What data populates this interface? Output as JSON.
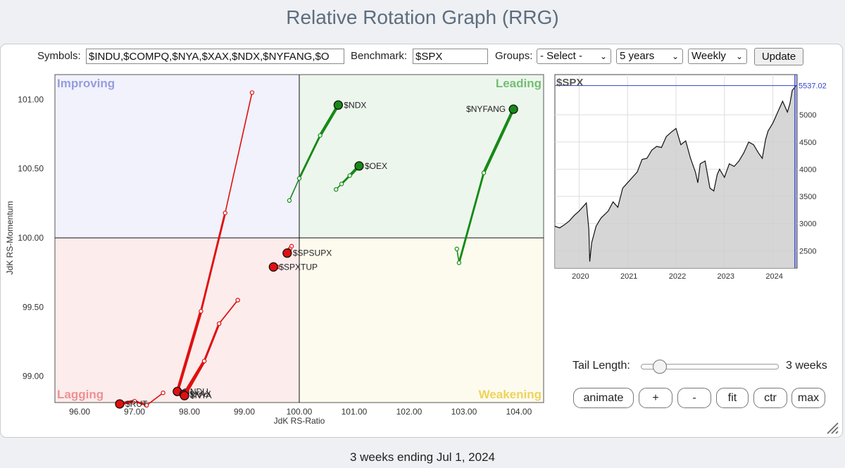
{
  "page_title": "Relative Rotation Graph (RRG)",
  "controls": {
    "symbols_label": "Symbols:",
    "symbols_value": "$INDU,$COMPQ,$NYA,$XAX,$NDX,$NYFANG,$O",
    "benchmark_label": "Benchmark:",
    "benchmark_value": "$SPX",
    "groups_label": "Groups:",
    "groups_value": "- Select -",
    "period_value": "5 years",
    "frequency_value": "Weekly",
    "update_label": "Update"
  },
  "chart_data": [
    {
      "type": "scatter",
      "xlabel": "JdK RS-Ratio",
      "ylabel": "JdK RS-Momentum",
      "xlim": [
        95.55,
        104.45
      ],
      "ylim": [
        98.81,
        101.18
      ],
      "x_ticks": [
        "96.00",
        "97.00",
        "98.00",
        "99.00",
        "100.00",
        "101.00",
        "102.00",
        "103.00",
        "104.00"
      ],
      "y_ticks": [
        "99.00",
        "99.50",
        "100.00",
        "100.50",
        "101.00"
      ],
      "quadrants": {
        "top_left": "Improving",
        "top_right": "Leading",
        "bottom_right": "Weakening",
        "bottom_left": "Lagging"
      },
      "quadrant_colors": {
        "improving": "#4b58c8",
        "leading": "#33a033",
        "weakening": "#e8c62a",
        "lagging": "#e04848"
      },
      "series": [
        {
          "name": "$NDX",
          "color": "#168a16",
          "label_side": "right",
          "points": [
            [
              99.82,
              100.27
            ],
            [
              100.0,
              100.43
            ],
            [
              100.38,
              100.74
            ],
            [
              100.71,
              100.96
            ]
          ]
        },
        {
          "name": "$OEX",
          "color": "#168a16",
          "label_side": "right",
          "points": [
            [
              100.67,
              100.35
            ],
            [
              100.77,
              100.39
            ],
            [
              100.92,
              100.45
            ],
            [
              101.09,
              100.52
            ]
          ]
        },
        {
          "name": "$NYFANG",
          "color": "#168a16",
          "label_side": "left",
          "points": [
            [
              102.87,
              99.92
            ],
            [
              102.91,
              99.82
            ],
            [
              103.36,
              100.47
            ],
            [
              103.9,
              100.93
            ]
          ]
        },
        {
          "name": "$SPSUPX",
          "color": "#e01010",
          "label_side": "right",
          "points": [
            [
              99.86,
              99.94
            ],
            [
              99.83,
              99.92
            ],
            [
              99.81,
              99.91
            ],
            [
              99.78,
              99.89
            ]
          ]
        },
        {
          "name": "$SPXTUP",
          "color": "#e01010",
          "label_side": "right",
          "points": [
            [
              99.6,
              99.79
            ],
            [
              99.57,
              99.79
            ],
            [
              99.55,
              99.79
            ],
            [
              99.53,
              99.79
            ]
          ]
        },
        {
          "name": "$INDU",
          "color": "#e01010",
          "label_side": "right",
          "points": [
            [
              99.14,
              101.05
            ],
            [
              98.65,
              100.18
            ],
            [
              98.21,
              99.47
            ],
            [
              97.78,
              98.89
            ]
          ]
        },
        {
          "name": "$XAX",
          "color": "#e01010",
          "label_side": "right",
          "points": [
            [
              98.88,
              99.55
            ],
            [
              98.54,
              99.38
            ],
            [
              98.27,
              99.11
            ],
            [
              97.9,
              98.87
            ]
          ]
        },
        {
          "name": "$NYA",
          "color": "#e01010",
          "label_side": "right",
          "points": [
            [
              98.88,
              99.55
            ],
            [
              98.54,
              99.38
            ],
            [
              98.27,
              99.11
            ],
            [
              97.91,
              98.86
            ]
          ]
        },
        {
          "name": "$RUT",
          "color": "#e01010",
          "label_side": "right",
          "points": [
            [
              97.52,
              98.88
            ],
            [
              97.22,
              98.79
            ],
            [
              97.0,
              98.82
            ],
            [
              96.73,
              98.8
            ]
          ]
        }
      ]
    },
    {
      "type": "area",
      "title": "$SPX",
      "last_value": "5537.02",
      "x_ticks": [
        "2020",
        "2021",
        "2022",
        "2023",
        "2024"
      ],
      "y_ticks": [
        "2500",
        "3000",
        "3500",
        "4000",
        "4500",
        "5000"
      ],
      "xlim": [
        2019.5,
        2024.5
      ],
      "ylim": [
        2180,
        5740
      ],
      "x": [
        2019.5,
        2019.6,
        2019.7,
        2019.8,
        2019.9,
        2020.0,
        2020.1,
        2020.15,
        2020.2,
        2020.22,
        2020.26,
        2020.35,
        2020.45,
        2020.6,
        2020.7,
        2020.8,
        2020.9,
        2021.0,
        2021.1,
        2021.2,
        2021.3,
        2021.4,
        2021.5,
        2021.6,
        2021.7,
        2021.8,
        2021.9,
        2022.0,
        2022.1,
        2022.2,
        2022.3,
        2022.4,
        2022.45,
        2022.5,
        2022.6,
        2022.7,
        2022.78,
        2022.85,
        2022.9,
        2023.0,
        2023.1,
        2023.2,
        2023.3,
        2023.4,
        2023.5,
        2023.6,
        2023.7,
        2023.78,
        2023.85,
        2023.9,
        2024.0,
        2024.1,
        2024.2,
        2024.3,
        2024.35,
        2024.4,
        2024.48
      ],
      "values": [
        2950,
        2920,
        2980,
        3050,
        3150,
        3230,
        3330,
        3380,
        2900,
        2300,
        2650,
        2950,
        3100,
        3230,
        3400,
        3300,
        3650,
        3750,
        3850,
        3950,
        4180,
        4200,
        4350,
        4420,
        4400,
        4600,
        4680,
        4750,
        4450,
        4520,
        4200,
        3950,
        3750,
        4100,
        4150,
        3650,
        3600,
        3900,
        4000,
        3850,
        4100,
        4050,
        4150,
        4300,
        4500,
        4450,
        4300,
        4200,
        4550,
        4700,
        4850,
        5050,
        5250,
        5050,
        5200,
        5450,
        5537.02
      ]
    }
  ],
  "controls_bottom": {
    "tail_length_label": "Tail Length:",
    "tail_length_value": "3 weeks",
    "tail_slider_level": 0.1,
    "animate_label": "animate",
    "plus_label": "+",
    "minus_label": "-",
    "fit_label": "fit",
    "ctr_label": "ctr",
    "max_label": "max"
  },
  "footer_text": "3 weeks ending Jul 1, 2024"
}
